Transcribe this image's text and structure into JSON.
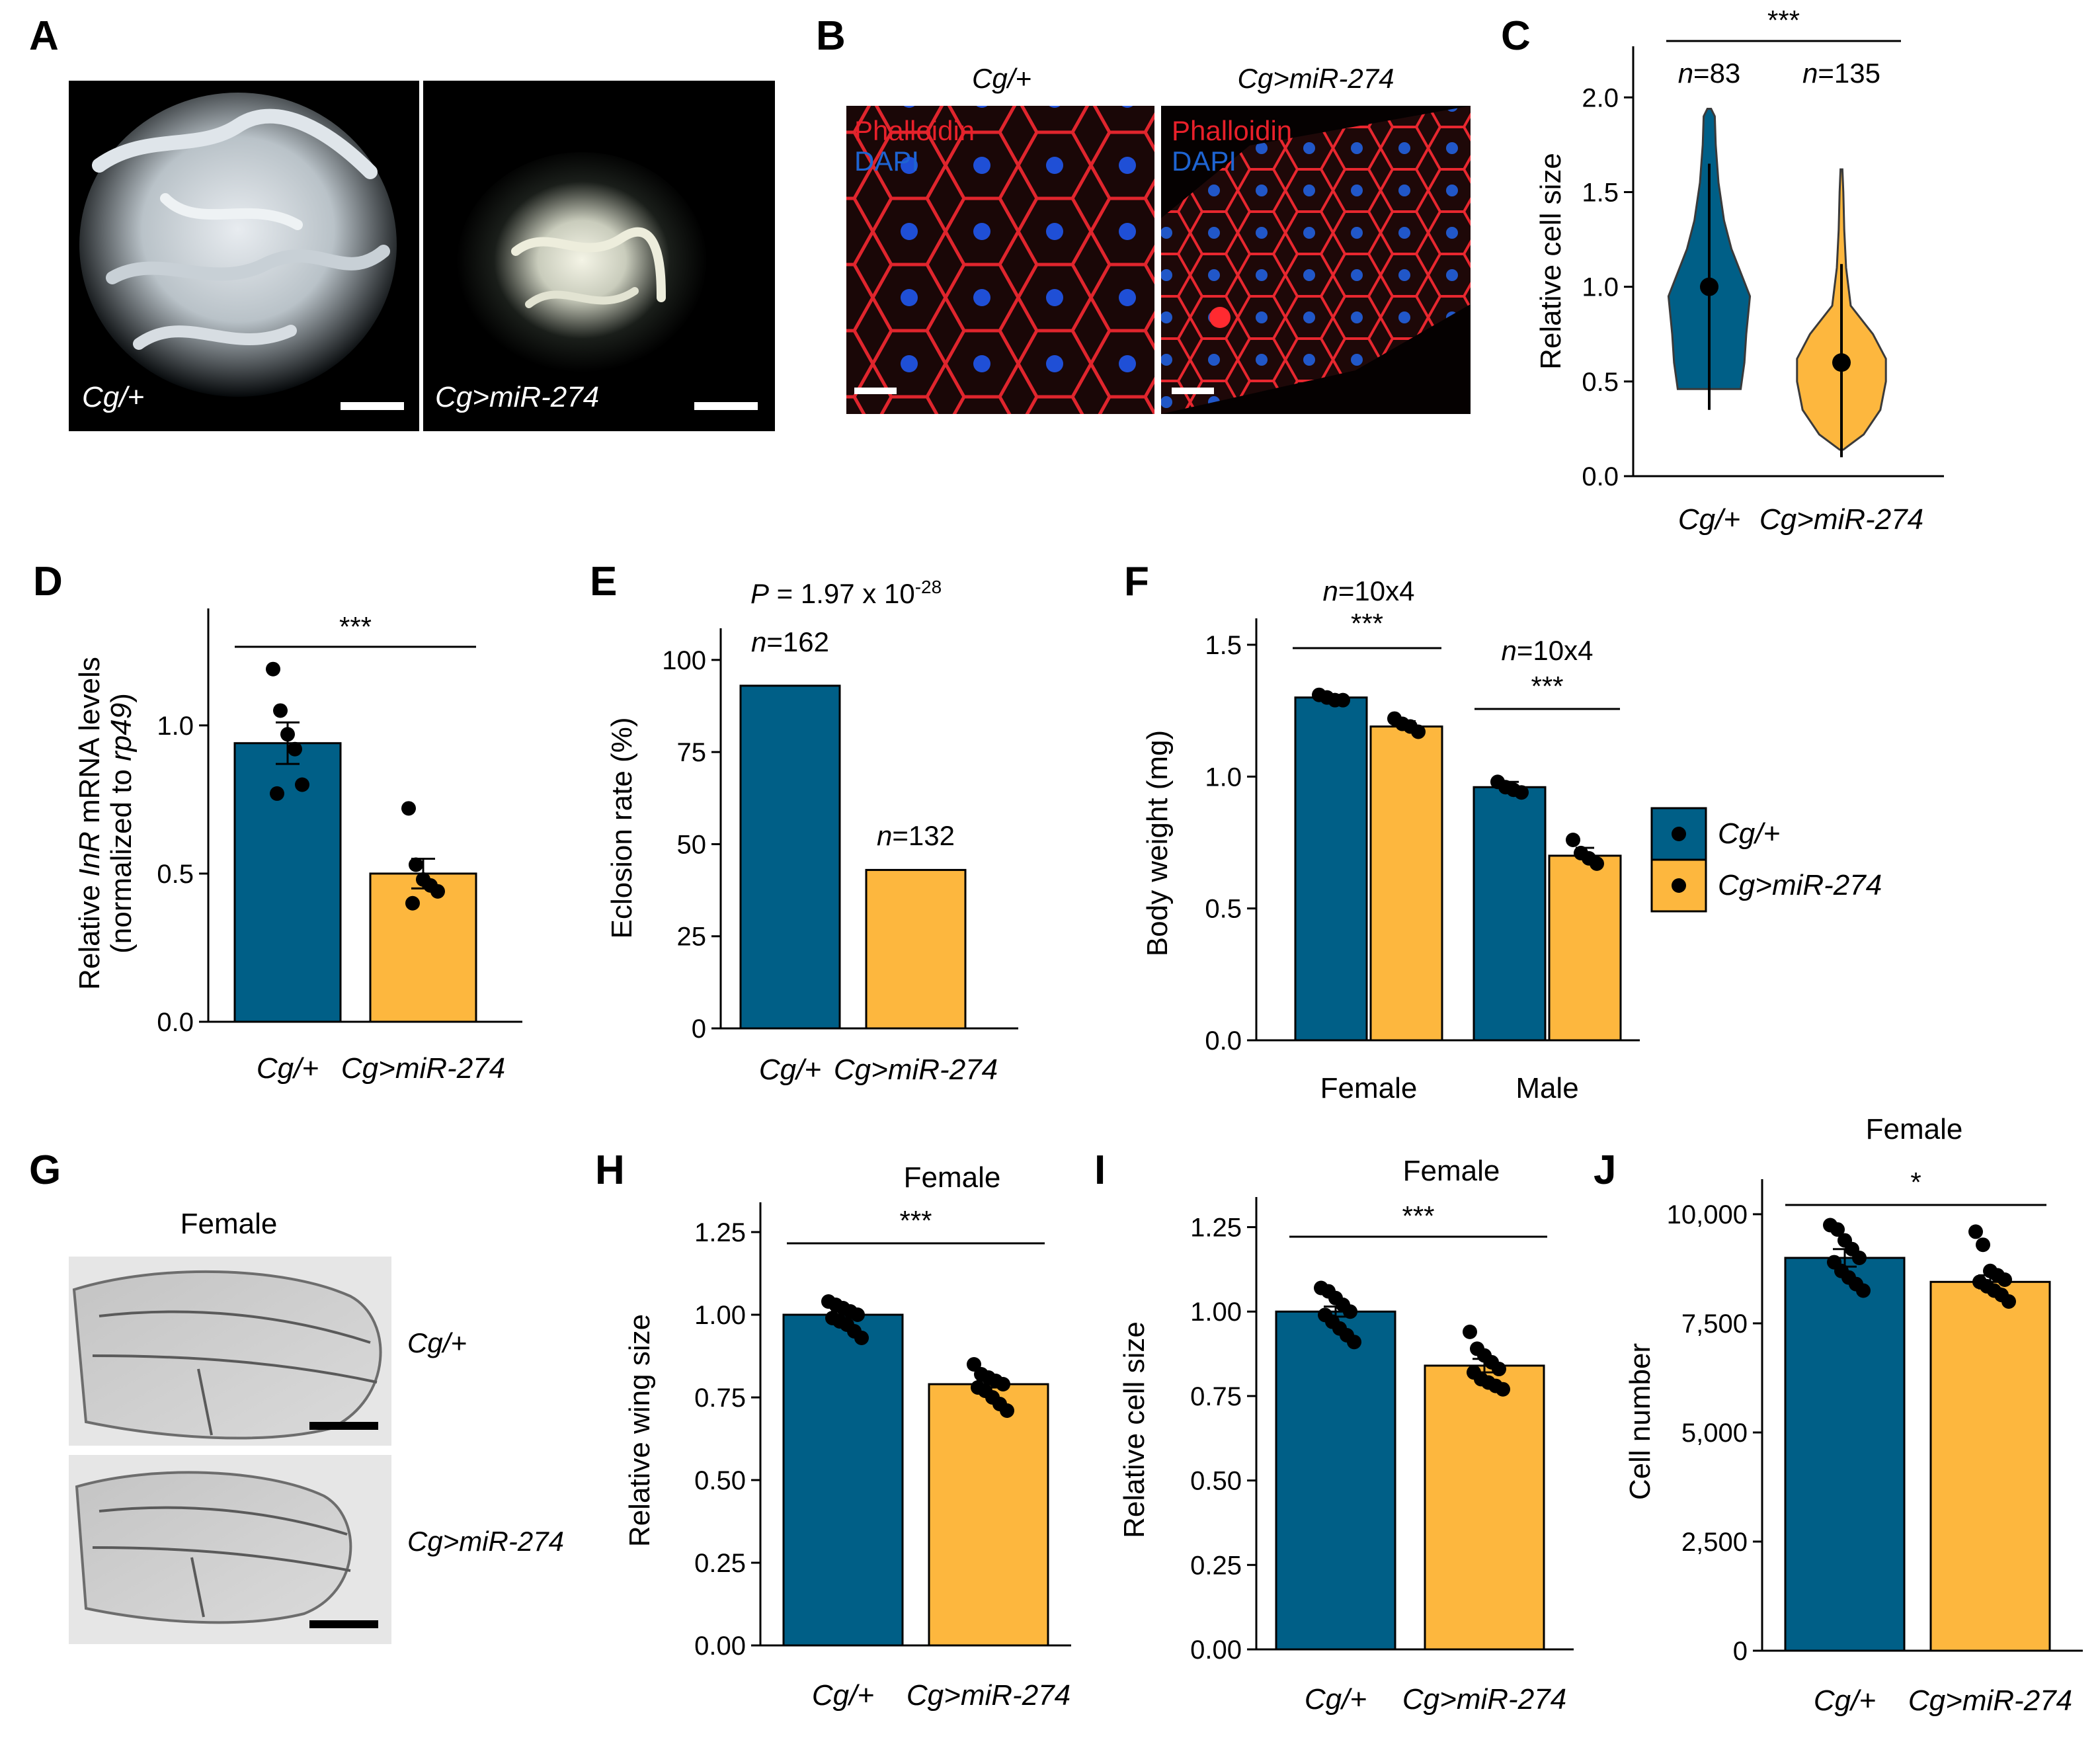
{
  "colors": {
    "control": "#005f87",
    "treated": "#fdb73e",
    "phalloidin": "#e8202a",
    "dapi": "#1e64d2"
  },
  "panels": {
    "A": {
      "label": "A",
      "left_caption": "Cg/+",
      "right_caption": "Cg>miR-274"
    },
    "B": {
      "label": "B",
      "left_title": "Cg/+",
      "right_title": "Cg>miR-274",
      "stain1": "Phalloidin",
      "stain2": "DAPI"
    },
    "C": {
      "label": "C"
    },
    "D": {
      "label": "D"
    },
    "E": {
      "label": "E"
    },
    "F": {
      "label": "F"
    },
    "G": {
      "label": "G",
      "title": "Female",
      "top_caption": "Cg/+",
      "bottom_caption": "Cg>miR-274"
    },
    "H": {
      "label": "H"
    },
    "I": {
      "label": "I"
    },
    "J": {
      "label": "J"
    }
  },
  "chart_data": [
    {
      "id": "C",
      "type": "violin",
      "ylabel": "Relative cell size",
      "ylim": [
        0,
        2.2
      ],
      "yticks": [
        "0.0",
        "0.5",
        "1.0",
        "1.5",
        "2.0"
      ],
      "ytick_values": [
        0,
        0.5,
        1.0,
        1.5,
        2.0
      ],
      "categories": [
        "Cg/+",
        "Cg>miR-274"
      ],
      "n_labels": [
        {
          "n": "n",
          "rest": "=83"
        },
        {
          "n": "n",
          "rest": "=135"
        }
      ],
      "significance": "***",
      "series": [
        {
          "name": "Cg/+",
          "median": 1.0,
          "whisker": [
            0.35,
            1.65
          ],
          "density": [
            [
              0.46,
              0.17
            ],
            [
              0.6,
              0.19
            ],
            [
              0.75,
              0.2
            ],
            [
              0.85,
              0.21
            ],
            [
              0.95,
              0.22
            ],
            [
              1.05,
              0.18
            ],
            [
              1.2,
              0.12
            ],
            [
              1.35,
              0.08
            ],
            [
              1.55,
              0.05
            ],
            [
              1.75,
              0.035
            ],
            [
              1.9,
              0.03
            ],
            [
              1.94,
              0.01
            ]
          ]
        },
        {
          "name": "Cg>miR-274",
          "median": 0.6,
          "whisker": [
            0.1,
            1.12
          ],
          "density": [
            [
              0.14,
              0.01
            ],
            [
              0.22,
              0.12
            ],
            [
              0.35,
              0.21
            ],
            [
              0.5,
              0.24
            ],
            [
              0.62,
              0.24
            ],
            [
              0.75,
              0.17
            ],
            [
              0.9,
              0.05
            ],
            [
              1.1,
              0.025
            ],
            [
              1.3,
              0.015
            ],
            [
              1.5,
              0.01
            ],
            [
              1.62,
              0.005
            ]
          ]
        }
      ]
    },
    {
      "id": "D",
      "type": "bar",
      "ylabel_parts": [
        "Relative ",
        "InR",
        " mRNA levels"
      ],
      "ylabel2_parts": [
        "(normalized to ",
        "rp49",
        ")"
      ],
      "ylim": [
        0,
        1.35
      ],
      "yticks": [
        "0.0",
        "0.5",
        "1.0"
      ],
      "ytick_values": [
        0,
        0.5,
        1.0
      ],
      "categories": [
        "Cg/+",
        "Cg>miR-274"
      ],
      "values": [
        0.94,
        0.5
      ],
      "errors": [
        0.07,
        0.05
      ],
      "points": [
        [
          1.19,
          1.05,
          0.97,
          0.92,
          0.8,
          0.77
        ],
        [
          0.72,
          0.53,
          0.48,
          0.46,
          0.44,
          0.4
        ]
      ],
      "significance": "***"
    },
    {
      "id": "E",
      "type": "bar",
      "ylabel": "Eclosion rate (%)",
      "ylim": [
        0,
        105
      ],
      "yticks": [
        "0",
        "25",
        "50",
        "75",
        "100"
      ],
      "ytick_values": [
        0,
        25,
        50,
        75,
        100
      ],
      "categories": [
        "Cg/+",
        "Cg>miR-274"
      ],
      "values": [
        93,
        43
      ],
      "n_labels": [
        {
          "n": "n",
          "rest": "=162"
        },
        {
          "n": "n",
          "rest": "=132"
        }
      ],
      "pvalue": {
        "p": "P",
        "mid": " = 1.97 x 10",
        "exp": "-28"
      }
    },
    {
      "id": "F",
      "type": "grouped-bar",
      "ylabel": "Body weight (mg)",
      "ylim": [
        0,
        1.55
      ],
      "yticks": [
        "0.0",
        "0.5",
        "1.0",
        "1.5"
      ],
      "ytick_values": [
        0,
        0.5,
        1.0,
        1.5
      ],
      "categories": [
        "Female",
        "Male"
      ],
      "series": [
        {
          "name": "Cg/+",
          "values": [
            1.3,
            0.96
          ],
          "errors": [
            0.01,
            0.02
          ],
          "points": [
            [
              1.31,
              1.3,
              1.29,
              1.29
            ],
            [
              0.98,
              0.96,
              0.95,
              0.94
            ]
          ]
        },
        {
          "name": "Cg>miR-274",
          "values": [
            1.19,
            0.7
          ],
          "errors": [
            0.02,
            0.03
          ],
          "points": [
            [
              1.22,
              1.2,
              1.19,
              1.17
            ],
            [
              0.76,
              0.71,
              0.69,
              0.67
            ]
          ]
        }
      ],
      "n_labels": [
        {
          "n": "n",
          "rest": "=10x4"
        },
        {
          "n": "n",
          "rest": "=10x4"
        }
      ],
      "significance": [
        "***",
        "***"
      ],
      "legend": "right"
    },
    {
      "id": "H",
      "type": "bar",
      "title": "Female",
      "ylabel": "Relative wing size",
      "ylim": [
        0,
        1.3
      ],
      "yticks": [
        "0.00",
        "0.25",
        "0.50",
        "0.75",
        "1.00",
        "1.25"
      ],
      "ytick_values": [
        0,
        0.25,
        0.5,
        0.75,
        1.0,
        1.25
      ],
      "categories": [
        "Cg/+",
        "Cg>miR-274"
      ],
      "values": [
        1.0,
        0.79
      ],
      "errors": [
        0.01,
        0.01
      ],
      "points": [
        [
          1.04,
          1.03,
          1.02,
          1.01,
          1.0,
          0.99,
          0.98,
          0.97,
          0.95,
          0.93
        ],
        [
          0.85,
          0.82,
          0.81,
          0.8,
          0.79,
          0.78,
          0.77,
          0.75,
          0.73,
          0.71
        ]
      ],
      "significance": "***"
    },
    {
      "id": "I",
      "type": "bar",
      "title": "Female",
      "ylabel": "Relative cell size",
      "ylim": [
        0,
        1.3
      ],
      "yticks": [
        "0.00",
        "0.25",
        "0.50",
        "0.75",
        "1.00",
        "1.25"
      ],
      "ytick_values": [
        0,
        0.25,
        0.5,
        0.75,
        1.0,
        1.25
      ],
      "categories": [
        "Cg/+",
        "Cg>miR-274"
      ],
      "values": [
        1.0,
        0.84
      ],
      "errors": [
        0.015,
        0.02
      ],
      "points": [
        [
          1.07,
          1.06,
          1.04,
          1.02,
          1.0,
          0.99,
          0.97,
          0.95,
          0.93,
          0.91
        ],
        [
          0.94,
          0.89,
          0.87,
          0.85,
          0.83,
          0.82,
          0.8,
          0.79,
          0.78,
          0.77
        ]
      ],
      "significance": "***"
    },
    {
      "id": "J",
      "type": "bar",
      "title": "Female",
      "ylabel": "Cell number",
      "ylim": [
        0,
        10500
      ],
      "yticks": [
        "0",
        "2,500",
        "5,000",
        "7,500",
        "10,000"
      ],
      "ytick_values": [
        0,
        2500,
        5000,
        7500,
        10000
      ],
      "categories": [
        "Cg/+",
        "Cg>miR-274"
      ],
      "values": [
        9000,
        8450
      ],
      "errors": [
        200,
        150
      ],
      "points": [
        [
          9750,
          9650,
          9400,
          9200,
          9000,
          8900,
          8700,
          8550,
          8400,
          8250
        ],
        [
          9600,
          9300,
          8700,
          8600,
          8500,
          8450,
          8350,
          8250,
          8150,
          8000
        ]
      ],
      "significance": "*"
    }
  ]
}
